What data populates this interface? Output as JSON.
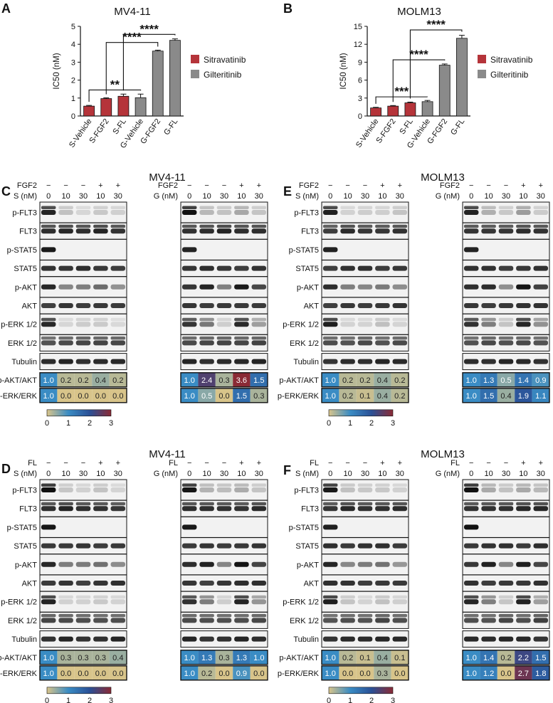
{
  "colors": {
    "sitravatinib": "#b5343a",
    "gilteritinib": "#8a8a8a",
    "scale_low": "#d8c48a",
    "scale_mid": "#2a5fa0",
    "scale_high": "#8a2a35"
  },
  "chart_data": [
    {
      "panel": "A",
      "type": "bar",
      "title": "MV4-11",
      "ylabel": "IC50 (nM)",
      "ylim": [
        0,
        5
      ],
      "yticks": [
        "0",
        "1",
        "2",
        "3",
        "4",
        "5"
      ],
      "categories": [
        "S-Vehicle",
        "S-FGF2",
        "S-FL",
        "G-Vehicle",
        "G-FGF2",
        "G-FL"
      ],
      "values": [
        0.55,
        0.97,
        1.1,
        1.02,
        3.62,
        4.22
      ],
      "errors": [
        0.04,
        0.04,
        0.12,
        0.2,
        0.05,
        0.08
      ],
      "series_index": [
        0,
        0,
        0,
        1,
        1,
        1
      ],
      "legend": [
        "Sitravatinib",
        "Gilteritinib"
      ],
      "sig": [
        {
          "from": 0,
          "to": 3,
          "label": "**",
          "y": 1.45
        },
        {
          "from": 1,
          "to": 4,
          "label": "****",
          "y": 4.1
        },
        {
          "from": 2,
          "to": 5,
          "label": "****",
          "y": 4.55
        }
      ]
    },
    {
      "panel": "B",
      "type": "bar",
      "title": "MOLM13",
      "ylabel": "IC50 (nM)",
      "ylim": [
        0,
        15
      ],
      "yticks": [
        "0",
        "3",
        "6",
        "9",
        "12",
        "15"
      ],
      "categories": [
        "S-Vehicle",
        "S-FGF2",
        "S-FL",
        "G-Vehicle",
        "G-FGF2",
        "G-FL"
      ],
      "values": [
        1.35,
        1.65,
        2.2,
        2.4,
        8.5,
        13.0
      ],
      "errors": [
        0.1,
        0.1,
        0.12,
        0.2,
        0.2,
        0.5
      ],
      "series_index": [
        0,
        0,
        0,
        1,
        1,
        1
      ],
      "legend": [
        "Sitravatinib",
        "Gilteritinib"
      ],
      "sig": [
        {
          "from": 0,
          "to": 3,
          "label": "***",
          "y": 3.2
        },
        {
          "from": 1,
          "to": 4,
          "label": "****",
          "y": 9.4
        },
        {
          "from": 2,
          "to": 5,
          "label": "****",
          "y": 14.4
        }
      ]
    }
  ],
  "blot_rows": [
    "p-FLT3",
    "FLT3",
    "p-STAT5",
    "STAT5",
    "p-AKT",
    "AKT",
    "p-ERK 1/2",
    "ERK 1/2",
    "Tubulin"
  ],
  "quant_rows": [
    "p-AKT/AKT",
    "p-ERK/ERK"
  ],
  "scale": {
    "ticks": [
      "0",
      "1",
      "2",
      "3"
    ]
  },
  "blots": [
    {
      "panel": "C",
      "title": "MV4-11",
      "factor": "FGF2",
      "show_scale": true,
      "left": {
        "drug": "S (nM)",
        "factor_marks": [
          "−",
          "−",
          "−",
          "+",
          "+"
        ],
        "doses": [
          "0",
          "10",
          "30",
          "10",
          "30"
        ],
        "quant": [
          [
            "1.0",
            "0.2",
            "0.2",
            "0.4",
            "0.2"
          ],
          [
            "1.0",
            "0.0",
            "0.0",
            "0.0",
            "0.0"
          ]
        ]
      },
      "right": {
        "drug": "G (nM)",
        "factor_marks": [
          "−",
          "−",
          "−",
          "+",
          "+"
        ],
        "doses": [
          "0",
          "10",
          "30",
          "10",
          "30"
        ],
        "quant": [
          [
            "1.0",
            "2.4",
            "0.3",
            "3.6",
            "1.5"
          ],
          [
            "1.0",
            "0.5",
            "0.0",
            "1.5",
            "0.3"
          ]
        ]
      }
    },
    {
      "panel": "E",
      "title": "MOLM13",
      "factor": "FGF2",
      "show_scale": true,
      "left": {
        "drug": "S (nM)",
        "factor_marks": [
          "−",
          "−",
          "−",
          "+",
          "+"
        ],
        "doses": [
          "0",
          "10",
          "30",
          "10",
          "30"
        ],
        "quant": [
          [
            "1.0",
            "0.2",
            "0.2",
            "0.4",
            "0.2"
          ],
          [
            "1.0",
            "0.2",
            "0.1",
            "0.4",
            "0.2"
          ]
        ]
      },
      "right": {
        "drug": "G (nM)",
        "factor_marks": [
          "−",
          "−",
          "−",
          "+",
          "+"
        ],
        "doses": [
          "0",
          "10",
          "30",
          "10",
          "30"
        ],
        "quant": [
          [
            "1.0",
            "1.3",
            "0.5",
            "1.4",
            "0.9"
          ],
          [
            "1.0",
            "1.5",
            "0.4",
            "1.9",
            "1.1"
          ]
        ]
      }
    },
    {
      "panel": "D",
      "title": "MV4-11",
      "factor": "FL",
      "show_scale": true,
      "left": {
        "drug": "S (nM)",
        "factor_marks": [
          "−",
          "−",
          "−",
          "+",
          "+"
        ],
        "doses": [
          "0",
          "10",
          "30",
          "10",
          "30"
        ],
        "quant": [
          [
            "1.0",
            "0.3",
            "0.3",
            "0.3",
            "0.4"
          ],
          [
            "1.0",
            "0.0",
            "0.0",
            "0.0",
            "0.0"
          ]
        ]
      },
      "right": {
        "drug": "G (nM)",
        "factor_marks": [
          "−",
          "−",
          "−",
          "+",
          "+"
        ],
        "doses": [
          "0",
          "10",
          "30",
          "10",
          "30"
        ],
        "quant": [
          [
            "1.0",
            "1.3",
            "0.3",
            "1.3",
            "1.0"
          ],
          [
            "1.0",
            "0.2",
            "0.0",
            "0.9",
            "0.0"
          ]
        ]
      }
    },
    {
      "panel": "F",
      "title": "MOLM13",
      "factor": "FL",
      "show_scale": true,
      "left": {
        "drug": "S (nM)",
        "factor_marks": [
          "−",
          "−",
          "−",
          "+",
          "+"
        ],
        "doses": [
          "0",
          "10",
          "30",
          "10",
          "30"
        ],
        "quant": [
          [
            "1.0",
            "0.2",
            "0.1",
            "0.4",
            "0.1"
          ],
          [
            "1.0",
            "0.0",
            "0.0",
            "0.3",
            "0.0"
          ]
        ]
      },
      "right": {
        "drug": "G (nM)",
        "factor_marks": [
          "−",
          "−",
          "−",
          "+",
          "+"
        ],
        "doses": [
          "0",
          "10",
          "30",
          "10",
          "30"
        ],
        "quant": [
          [
            "1.0",
            "1.4",
            "0.2",
            "2.2",
            "1.5"
          ],
          [
            "1.0",
            "1.2",
            "0.0",
            "2.7",
            "1.8"
          ]
        ]
      }
    }
  ]
}
